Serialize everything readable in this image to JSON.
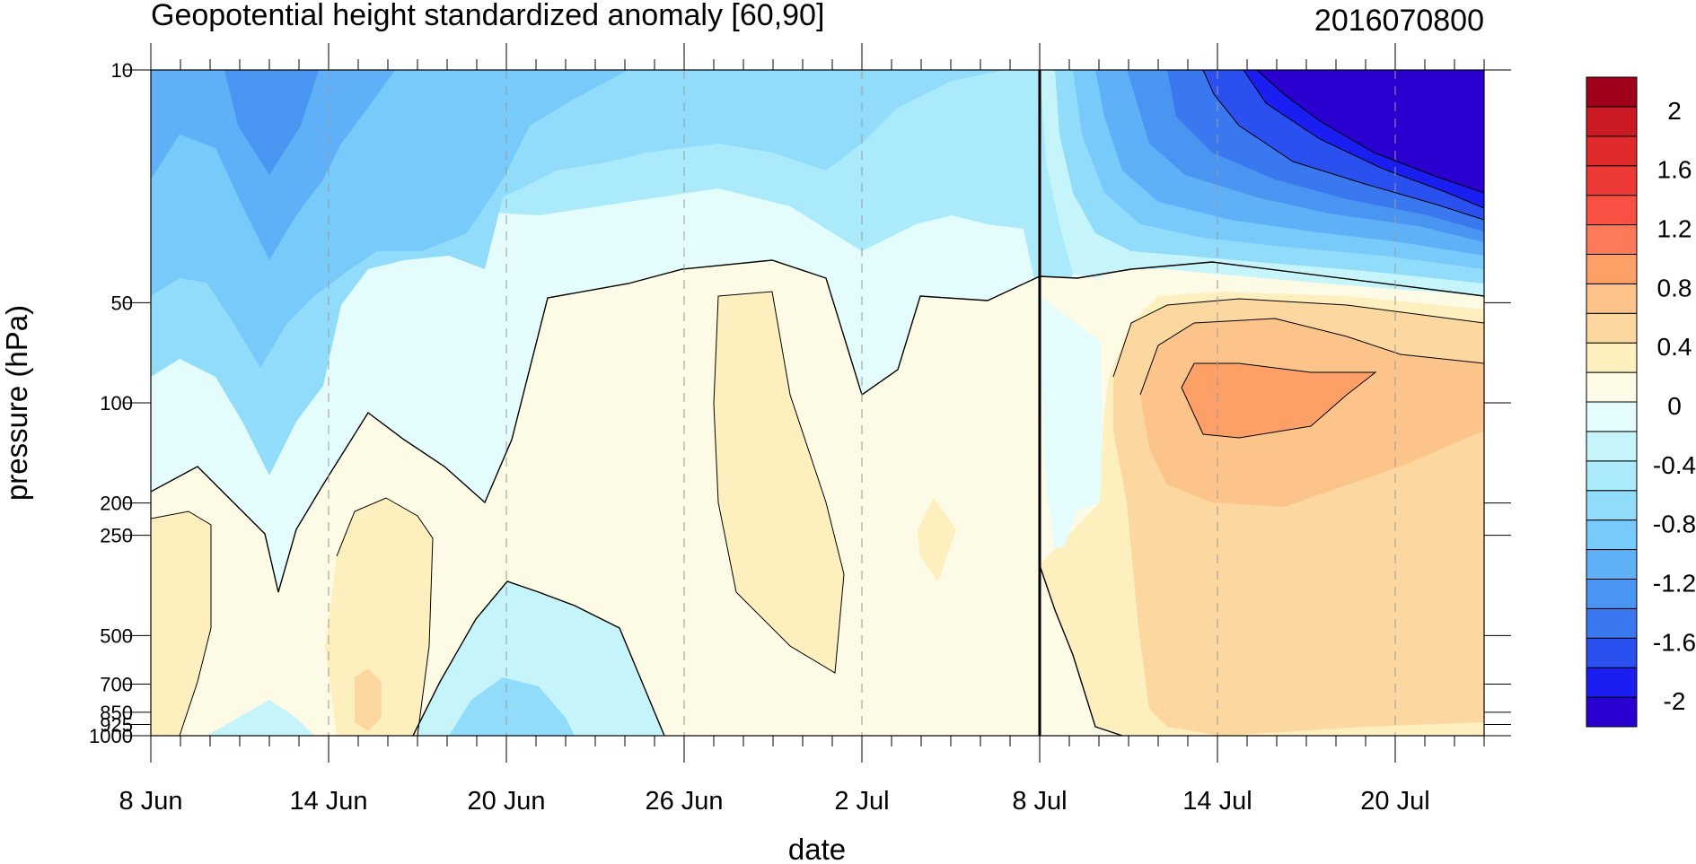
{
  "chart_data": {
    "type": "heatmap",
    "subtype": "filled-contour",
    "title": "Geopotential height standardized anomaly [60,90]",
    "date_label": "2016070800",
    "xlabel": "date",
    "ylabel": "pressure (hPa)",
    "x_ticks": [
      "8 Jun",
      "14 Jun",
      "20 Jun",
      "26 Jun",
      "2 Jul",
      "8 Jul",
      "14 Jul",
      "20 Jul"
    ],
    "x_range": [
      "2016-06-08",
      "2016-07-23"
    ],
    "y_ticks": [
      10,
      50,
      100,
      200,
      250,
      500,
      700,
      850,
      925,
      1000
    ],
    "y_range": [
      1000,
      10
    ],
    "y_scale": "log",
    "current_date_line": "2016-07-08",
    "colorbar": {
      "labels": [
        "2",
        "1.6",
        "1.2",
        "0.8",
        "0.4",
        "0",
        "-0.4",
        "-0.8",
        "-1.2",
        "-1.6",
        "-2"
      ],
      "levels": [
        -2.2,
        -2.0,
        -1.8,
        -1.6,
        -1.4,
        -1.2,
        -1.0,
        -0.8,
        -0.6,
        -0.4,
        -0.2,
        0,
        0.2,
        0.4,
        0.6,
        0.8,
        1.0,
        1.2,
        1.4,
        1.6,
        1.8,
        2.0,
        2.2
      ],
      "colors": [
        "#2a00d0",
        "#1a1ef0",
        "#2a50f0",
        "#3a78f0",
        "#4a94f2",
        "#60b0f8",
        "#78cafa",
        "#92dcfb",
        "#aaeafb",
        "#c6f4fb",
        "#e4fcfc",
        "#fdfbe6",
        "#fdefbe",
        "#fcd8a0",
        "#fcc48a",
        "#fca068",
        "#fc7a5a",
        "#f85042",
        "#ee3a36",
        "#e02a2c",
        "#cc1a24",
        "#a0001c"
      ]
    },
    "regions": [
      {
        "name": "strat-negative",
        "value": -0.6
      },
      {
        "name": "early-june-minimum",
        "value": -1.1
      },
      {
        "name": "late-july-strat-minimum",
        "value": -2.3
      },
      {
        "name": "tropo-positive",
        "value": 0.2
      },
      {
        "name": "mid-july-maximum",
        "value": 1.0
      },
      {
        "name": "surface-negative-20jun",
        "value": -0.5
      }
    ]
  }
}
